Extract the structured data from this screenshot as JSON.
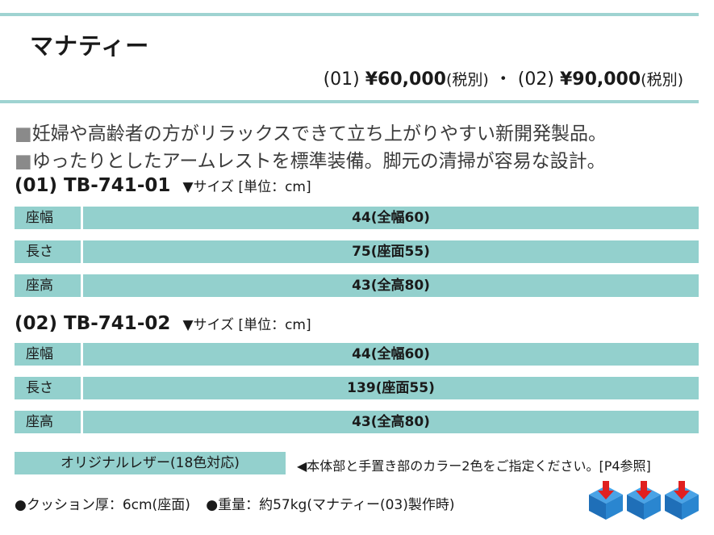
{
  "title": "マナティー",
  "price": {
    "m1_code": "(01)",
    "m1_price": "¥60,000",
    "tax1": "(税別)",
    "sep": "・",
    "m2_code": "(02)",
    "m2_price": "¥90,000",
    "tax2": "(税別)"
  },
  "features": {
    "bullet": "■",
    "f1": "妊婦や高齢者の方がリラックスできて立ち上がりやすい新開発製品。",
    "f2": "ゆったりとしたアームレストを標準装備。脚元の清掃が容易な設計。"
  },
  "models": [
    {
      "code": "(01) TB-741-01",
      "size_label": "▼サイズ [単位：cm]",
      "rows": [
        {
          "label": "座幅",
          "value": "44(全幅60)"
        },
        {
          "label": "長さ",
          "value": "75(座面55)"
        },
        {
          "label": "座高",
          "value": "43(全高80)"
        }
      ]
    },
    {
      "code": "(02) TB-741-02",
      "size_label": "▼サイズ [単位：cm]",
      "rows": [
        {
          "label": "座幅",
          "value": "44(全幅60)"
        },
        {
          "label": "長さ",
          "value": "139(座面55)"
        },
        {
          "label": "座高",
          "value": "43(全高80)"
        }
      ]
    }
  ],
  "leather": "オリジナルレザー(18色対応)",
  "note": "◀本体部と手置き部のカラー2色をご指定ください。[P4参照]",
  "footer": {
    "cushion": "●クッション厚：6cm(座面)",
    "weight": "●重量：約57kg(マナティー(03)製作時)"
  },
  "icons": [
    "cube-arrow-icon",
    "cube-arrow-icon",
    "cube-arrow-icon"
  ],
  "colors": {
    "accent": "#93d0cd",
    "rule": "#9fd3d1",
    "cube": "#2a7fc4",
    "arrow": "#e02020"
  }
}
